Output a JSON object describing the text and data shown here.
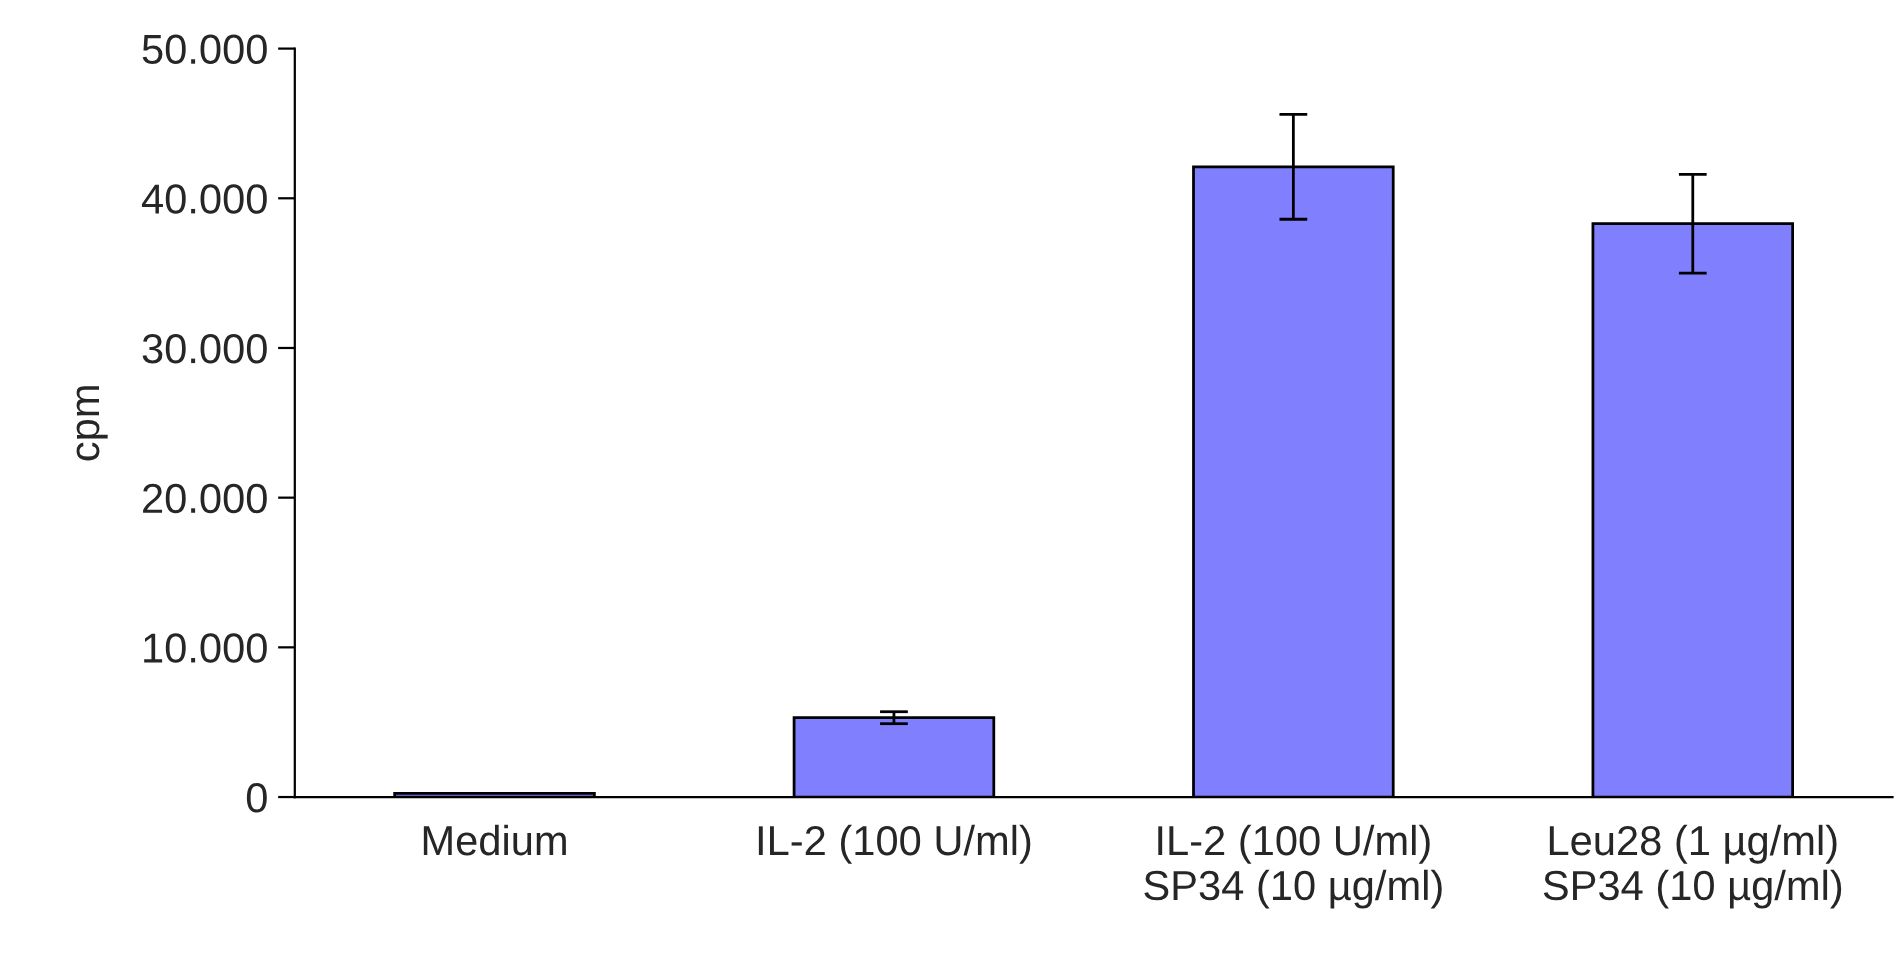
{
  "chart_data": {
    "type": "bar",
    "ylabel": "cpm",
    "categories": [
      "Medium",
      "IL-2 (100 U/ml)",
      "IL-2 (100 U/ml)\nSP34 (10 µg/ml)",
      "Leu28 (1 µg/ml)\nSP34 (10 µg/ml)"
    ],
    "values": [
      250,
      5300,
      42100,
      38300
    ],
    "errors": [
      null,
      400,
      3500,
      3300
    ],
    "color": "#8080ff",
    "ylim": [
      0,
      50000
    ],
    "yticks": [
      {
        "value": 0,
        "label": "0"
      },
      {
        "value": 10000,
        "label": "10.000"
      },
      {
        "value": 20000,
        "label": "20.000"
      },
      {
        "value": 30000,
        "label": "30.000"
      },
      {
        "value": 40000,
        "label": "40.000"
      },
      {
        "value": 50000,
        "label": "50.000"
      }
    ],
    "grid": false,
    "legend": false
  }
}
